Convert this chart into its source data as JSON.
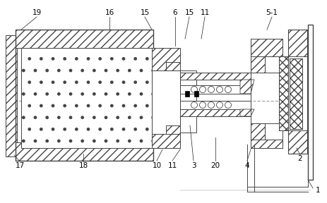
{
  "bg_color": "#ffffff",
  "lc": "#444444",
  "fig_width": 4.64,
  "fig_height": 2.88,
  "dpi": 100
}
